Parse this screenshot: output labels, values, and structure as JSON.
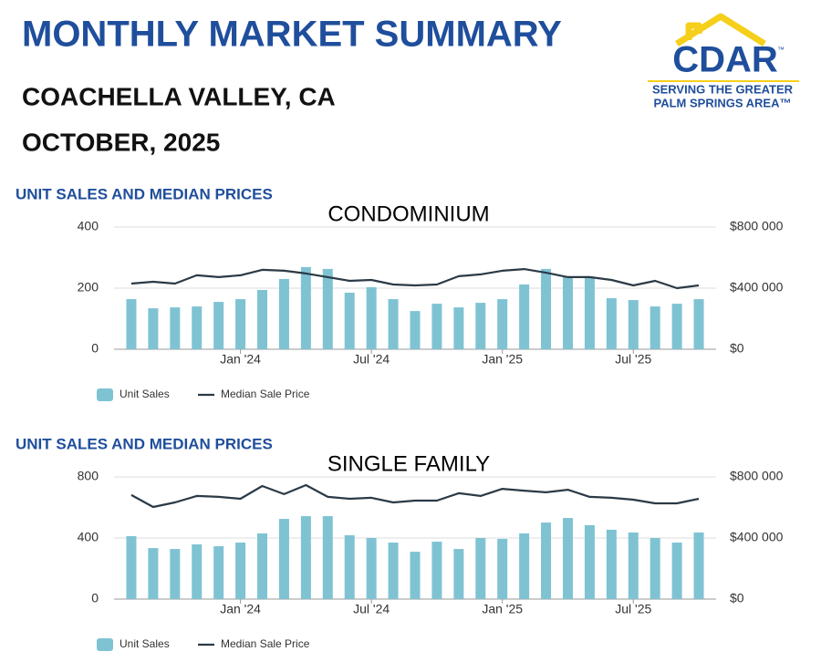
{
  "header": {
    "title": "MONTHLY MARKET SUMMARY",
    "region": "COACHELLA VALLEY, CA",
    "period": "OCTOBER, 2025",
    "logo": {
      "name": "CDAR",
      "mark": "™",
      "line1": "SERVING THE GREATER",
      "line2": "PALM SPRINGS AREA™"
    }
  },
  "chart_data": [
    {
      "type": "bar",
      "title": "UNIT SALES AND MEDIAN PRICES",
      "subtitle": "CONDOMINIUM",
      "categories": [
        null,
        null,
        null,
        null,
        null,
        "Jan '24",
        null,
        null,
        null,
        null,
        null,
        "Jul '24",
        null,
        null,
        null,
        null,
        null,
        "Jan '25",
        null,
        null,
        null,
        null,
        null,
        "Jul '25",
        null,
        null,
        null
      ],
      "series": [
        {
          "name": "Unit Sales",
          "color": "#7fc3d3",
          "values": [
            164,
            134,
            137,
            140,
            155,
            164,
            194,
            230,
            269,
            263,
            185,
            203,
            164,
            125,
            149,
            137,
            152,
            164,
            212,
            263,
            236,
            236,
            167,
            161,
            140,
            149,
            164
          ]
        },
        {
          "name": "Median Sale Price",
          "type": "line",
          "axis": "y2",
          "color": "#2b3a46",
          "values": [
            430000,
            442000,
            430000,
            484000,
            472000,
            484000,
            520000,
            514000,
            496000,
            472000,
            448000,
            454000,
            424000,
            418000,
            424000,
            478000,
            490000,
            514000,
            525000,
            501000,
            472000,
            472000,
            454000,
            418000,
            448000,
            400000,
            418000
          ]
        }
      ],
      "ylim": [
        0,
        400
      ],
      "yticks": [
        0,
        200,
        400
      ],
      "y2lim": [
        0,
        800000
      ],
      "y2ticks": [
        {
          "value": 0,
          "label": "$0"
        },
        {
          "value": 400000,
          "label": "$400 000"
        },
        {
          "value": 800000,
          "label": "$800 000"
        }
      ],
      "grid": true
    },
    {
      "type": "bar",
      "title": "UNIT SALES AND MEDIAN PRICES",
      "subtitle": "SINGLE FAMILY",
      "categories": [
        null,
        null,
        null,
        null,
        null,
        "Jan '24",
        null,
        null,
        null,
        null,
        null,
        "Jul '24",
        null,
        null,
        null,
        null,
        null,
        "Jan '25",
        null,
        null,
        null,
        null,
        null,
        "Jul '25",
        null,
        null,
        null
      ],
      "series": [
        {
          "name": "Unit Sales",
          "color": "#7fc3d3",
          "values": [
            412,
            334,
            328,
            358,
            346,
            370,
            430,
            525,
            543,
            543,
            418,
            400,
            370,
            310,
            376,
            328,
            400,
            394,
            430,
            501,
            531,
            484,
            454,
            436,
            400,
            370,
            436
          ]
        },
        {
          "name": "Median Sale Price",
          "type": "line",
          "axis": "y2",
          "color": "#2b3a46",
          "values": [
            681000,
            603000,
            633000,
            675000,
            669000,
            657000,
            740000,
            687000,
            746000,
            669000,
            657000,
            663000,
            633000,
            645000,
            645000,
            693000,
            675000,
            722000,
            710000,
            699000,
            716000,
            669000,
            663000,
            651000,
            627000,
            627000,
            657000
          ]
        }
      ],
      "ylim": [
        0,
        800
      ],
      "yticks": [
        0,
        400,
        800
      ],
      "y2lim": [
        0,
        800000
      ],
      "y2ticks": [
        {
          "value": 0,
          "label": "$0"
        },
        {
          "value": 400000,
          "label": "$400 000"
        },
        {
          "value": 800000,
          "label": "$800 000"
        }
      ],
      "grid": true
    }
  ]
}
